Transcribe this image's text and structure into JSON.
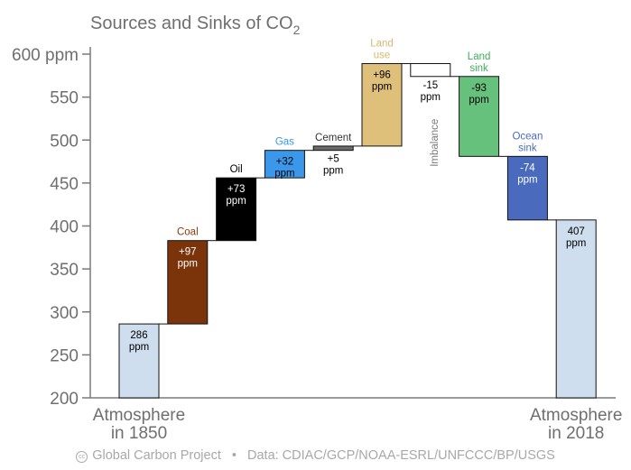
{
  "chart_data": {
    "type": "bar",
    "title": "Sources and Sinks of CO",
    "title_subscript": "2",
    "y_tick_labels": [
      "600 ppm",
      "550",
      "500",
      "450",
      "400",
      "350",
      "300",
      "250",
      "200"
    ],
    "ylim": [
      200,
      600
    ],
    "grid": false,
    "bars": [
      {
        "start": 200,
        "end": 286,
        "value": "286\nppm",
        "label": "",
        "color": "#cfdeee",
        "text_color": "#000000",
        "label_color": "#7a7a7a"
      },
      {
        "start": 286,
        "end": 383,
        "value": "+97\nppm",
        "label": "Coal",
        "color": "#7b3309",
        "text_color": "#ffffff",
        "label_color": "#8b3a0f"
      },
      {
        "start": 383,
        "end": 456,
        "value": "+73\nppm",
        "label": "Oil",
        "color": "#000000",
        "text_color": "#ffffff",
        "label_color": "#000000"
      },
      {
        "start": 456,
        "end": 488,
        "value": "+32\nppm",
        "label": "Gas",
        "color": "#3a97ea",
        "text_color": "#000000",
        "label_color": "#3a97ea"
      },
      {
        "start": 488,
        "end": 493,
        "value": "+5\nppm",
        "label": "Cement",
        "color": "#6b6b6b",
        "text_color": "#000000",
        "label_color": "#333333"
      },
      {
        "start": 493,
        "end": 589,
        "value": "+96\nppm",
        "label": "Land\nuse",
        "color": "#dfc07a",
        "text_color": "#000000",
        "label_color": "#d9b86e"
      },
      {
        "start": 589,
        "end": 574,
        "value": "-15\nppm",
        "label": "Imbalance",
        "color": "#ffffff",
        "text_color": "#000000",
        "label_color": "#7a7a7a"
      },
      {
        "start": 574,
        "end": 481,
        "value": "-93\nppm",
        "label": "Land\nsink",
        "color": "#66c17c",
        "text_color": "#000000",
        "label_color": "#3fae5a"
      },
      {
        "start": 481,
        "end": 407,
        "value": "-74\nppm",
        "label": "Ocean\nsink",
        "color": "#4a6bbd",
        "text_color": "#ffffff",
        "label_color": "#4a6bbd"
      },
      {
        "start": 407,
        "end": 200,
        "value": "407\nppm",
        "label": "",
        "color": "#cfdeee",
        "text_color": "#000000",
        "label_color": "#7a7a7a"
      }
    ],
    "x_labels": [
      "Atmosphere\nin 1850",
      "Atmosphere\nin 2018"
    ]
  },
  "footer": {
    "cc_icon": "cc-icon",
    "source": "Global Carbon Project",
    "data": "Data: CDIAC/GCP/NOAA-ESRL/UNFCCC/BP/USGS"
  }
}
